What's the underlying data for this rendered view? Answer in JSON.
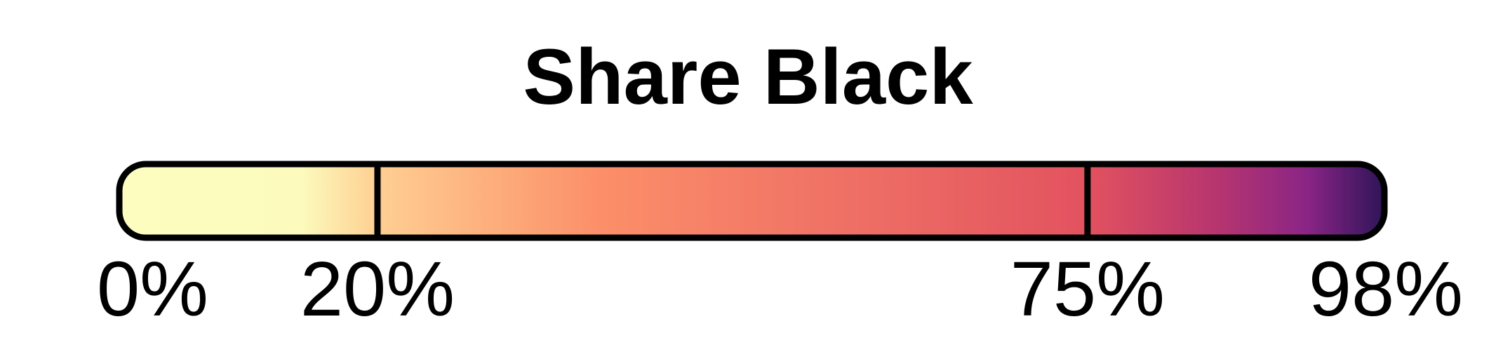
{
  "chart_data": {
    "type": "color-legend",
    "title": "Share Black",
    "scale": "magma",
    "range": [
      0,
      98
    ],
    "ticks": [
      {
        "value": 0,
        "label": "0%"
      },
      {
        "value": 20,
        "label": "20%"
      },
      {
        "value": 75,
        "label": "75%"
      },
      {
        "value": 98,
        "label": "98%"
      }
    ],
    "gradient_stops": [
      {
        "value": 0,
        "color": "#fcfdbf"
      },
      {
        "value": 14,
        "color": "#fcfbbd"
      },
      {
        "value": 20,
        "color": "#fecf92"
      },
      {
        "value": 37,
        "color": "#fc8f69"
      },
      {
        "value": 57,
        "color": "#ee6f65"
      },
      {
        "value": 75,
        "color": "#e2525f"
      },
      {
        "value": 85,
        "color": "#b7356f"
      },
      {
        "value": 92,
        "color": "#8a2585"
      },
      {
        "value": 98,
        "color": "#2e1458"
      }
    ],
    "outline_color": "#000000"
  }
}
